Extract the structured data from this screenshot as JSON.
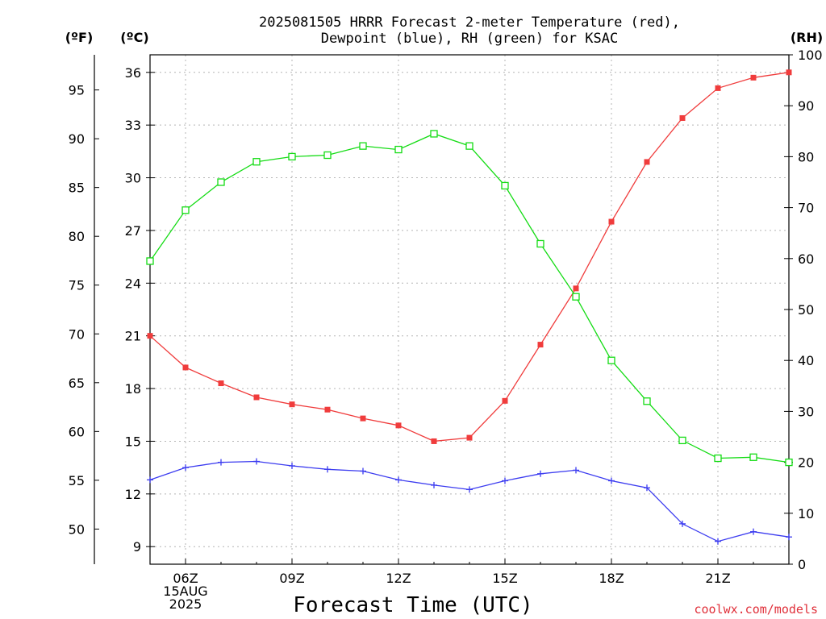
{
  "title_line1": "2025081505 HRRR Forecast 2-meter Temperature (red),",
  "title_line2": "Dewpoint (blue), RH (green) for KSAC",
  "unit_f": "(ºF)",
  "unit_c": "(ºC)",
  "unit_rh": "(RH)",
  "credit": "coolwx.com/models",
  "chart_data": {
    "type": "line",
    "title": "2025081505 HRRR Forecast 2-meter Temperature (red), Dewpoint (blue), RH (green) for KSAC",
    "xlabel": "Forecast Time (UTC)",
    "x": [
      "05Z",
      "06Z",
      "07Z",
      "08Z",
      "09Z",
      "10Z",
      "11Z",
      "12Z",
      "13Z",
      "14Z",
      "15Z",
      "16Z",
      "17Z",
      "18Z",
      "19Z",
      "20Z",
      "21Z",
      "22Z",
      "23Z"
    ],
    "x_tick_labels": [
      {
        "x": "06Z",
        "lines": [
          "06Z",
          "15AUG",
          "2025"
        ]
      },
      {
        "x": "09Z",
        "lines": [
          "09Z"
        ]
      },
      {
        "x": "12Z",
        "lines": [
          "12Z"
        ]
      },
      {
        "x": "15Z",
        "lines": [
          "15Z"
        ]
      },
      {
        "x": "18Z",
        "lines": [
          "18Z"
        ]
      },
      {
        "x": "21Z",
        "lines": [
          "21Z"
        ]
      }
    ],
    "y_celsius": {
      "label": "(ºC)",
      "range": [
        8,
        37
      ],
      "ticks": [
        9,
        12,
        15,
        18,
        21,
        24,
        27,
        30,
        33,
        36
      ]
    },
    "y_fahrenheit": {
      "label": "(ºF)",
      "ticks": [
        50,
        55,
        60,
        65,
        70,
        75,
        80,
        85,
        90,
        95
      ]
    },
    "y_rh": {
      "label": "(RH)",
      "range": [
        0,
        100
      ],
      "ticks": [
        0,
        10,
        20,
        30,
        40,
        50,
        60,
        70,
        80,
        90,
        100
      ]
    },
    "grid": true,
    "series": [
      {
        "name": "Temperature",
        "color": "#f03c3c",
        "axis": "celsius",
        "marker": "filled-square",
        "values": [
          21.0,
          19.2,
          18.3,
          17.5,
          17.1,
          16.8,
          16.3,
          15.9,
          15.0,
          15.2,
          17.3,
          20.5,
          23.7,
          27.5,
          30.9,
          33.4,
          35.1,
          35.7,
          36.0
        ]
      },
      {
        "name": "Dewpoint",
        "color": "#3c3cf0",
        "axis": "celsius",
        "marker": "plus",
        "values": [
          12.8,
          13.5,
          13.8,
          13.85,
          13.6,
          13.4,
          13.3,
          12.8,
          12.5,
          12.25,
          12.75,
          13.15,
          13.35,
          12.75,
          12.35,
          10.3,
          9.3,
          9.85,
          9.55
        ]
      },
      {
        "name": "RH",
        "color": "#14dc14",
        "axis": "rh",
        "marker": "open-square",
        "values": [
          59.5,
          69.5,
          75,
          79,
          80,
          80.3,
          82.1,
          81.4,
          84.5,
          82.1,
          74.3,
          62.9,
          52.5,
          40,
          32,
          24.3,
          20.8,
          21,
          20
        ]
      }
    ]
  }
}
